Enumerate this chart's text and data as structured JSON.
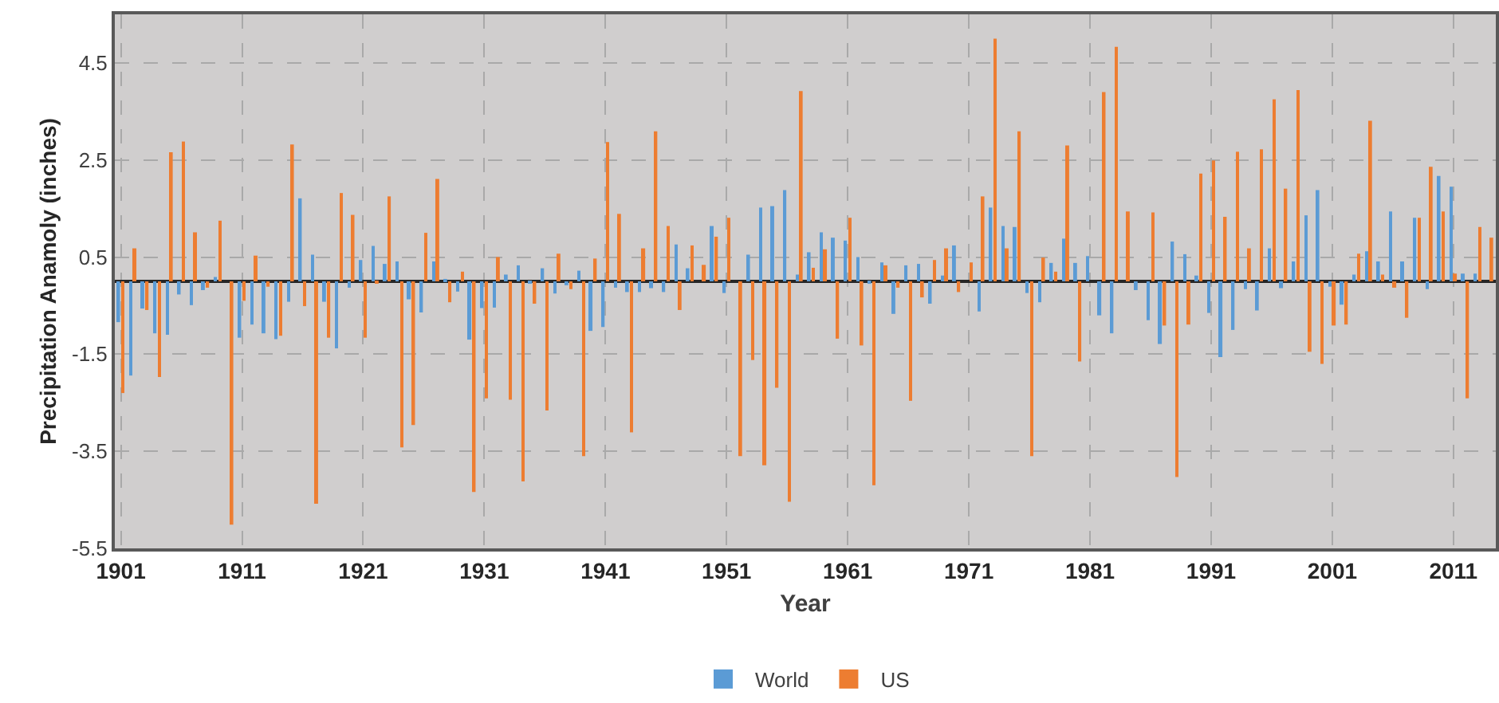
{
  "chart_data": {
    "type": "bar",
    "xlabel": "Year",
    "ylabel": "Precipitation Anamoly (inches)",
    "x": [
      1901,
      1902,
      1903,
      1904,
      1905,
      1906,
      1907,
      1908,
      1909,
      1910,
      1911,
      1912,
      1913,
      1914,
      1915,
      1916,
      1917,
      1918,
      1919,
      1920,
      1921,
      1922,
      1923,
      1924,
      1925,
      1926,
      1927,
      1928,
      1929,
      1930,
      1931,
      1932,
      1933,
      1934,
      1935,
      1936,
      1937,
      1938,
      1939,
      1940,
      1941,
      1942,
      1943,
      1944,
      1945,
      1946,
      1947,
      1948,
      1949,
      1950,
      1951,
      1952,
      1953,
      1954,
      1955,
      1956,
      1957,
      1958,
      1959,
      1960,
      1961,
      1962,
      1963,
      1964,
      1965,
      1966,
      1967,
      1968,
      1969,
      1970,
      1971,
      1972,
      1973,
      1974,
      1975,
      1976,
      1977,
      1978,
      1979,
      1980,
      1981,
      1982,
      1983,
      1984,
      1985,
      1986,
      1987,
      1988,
      1989,
      1990,
      1991,
      1992,
      1993,
      1994,
      1995,
      1996,
      1997,
      1998,
      1999,
      2000,
      2001,
      2002,
      2003,
      2004,
      2005,
      2006,
      2007,
      2008,
      2009,
      2010,
      2011,
      2012,
      2013,
      2014
    ],
    "series": [
      {
        "name": "World",
        "color": "#5b9bd5",
        "values": [
          -0.84,
          -1.94,
          -0.56,
          -1.07,
          -1.1,
          -0.27,
          -0.49,
          -0.18,
          0.09,
          0,
          -1.16,
          -0.89,
          -1.07,
          -1.19,
          -0.42,
          1.71,
          0.55,
          -0.42,
          -1.38,
          -0.13,
          0.44,
          0.73,
          0.36,
          0.41,
          -0.37,
          -0.64,
          0.41,
          0.05,
          -0.21,
          -1.2,
          -0.55,
          -0.54,
          0.14,
          0.33,
          -0.02,
          0.27,
          -0.25,
          -0.08,
          0.22,
          -1.02,
          -0.94,
          -0.13,
          -0.22,
          -0.22,
          -0.14,
          -0.22,
          0.76,
          0.27,
          0,
          1.14,
          -0.24,
          0,
          0.55,
          1.52,
          1.55,
          1.88,
          0.14,
          0.6,
          1.01,
          0.9,
          0.84,
          0.5,
          -0.05,
          0.39,
          -0.67,
          0.33,
          0.36,
          -0.46,
          0.12,
          0.74,
          0,
          -0.62,
          1.52,
          1.14,
          1.12,
          -0.24,
          -0.43,
          0.38,
          0.88,
          0.38,
          0.52,
          -0.7,
          -1.07,
          0,
          -0.18,
          -0.8,
          -1.29,
          0.82,
          0.56,
          0.12,
          -0.65,
          -1.56,
          -1.0,
          -0.16,
          -0.6,
          0.68,
          -0.14,
          0.41,
          1.36,
          1.88,
          -0.11,
          -0.48,
          0.14,
          0.62,
          0.41,
          1.44,
          0.41,
          1.31,
          -0.16,
          2.17,
          1.95,
          0.16,
          0.16,
          null
        ]
      },
      {
        "name": "US",
        "color": "#ed7d31",
        "values": [
          -2.3,
          0.68,
          -0.59,
          -1.97,
          2.66,
          2.88,
          1.01,
          -0.13,
          1.25,
          -5.01,
          -0.4,
          0.53,
          -0.11,
          -1.12,
          2.82,
          -0.51,
          -4.58,
          -1.16,
          1.82,
          1.37,
          -1.16,
          -0.04,
          1.75,
          -3.42,
          -2.96,
          1.0,
          2.11,
          -0.43,
          0.2,
          -4.34,
          -2.41,
          0.5,
          -2.44,
          -4.12,
          -0.46,
          -2.66,
          0.57,
          -0.16,
          -3.6,
          0.47,
          2.87,
          1.39,
          -3.11,
          0.68,
          3.09,
          1.14,
          -0.59,
          0.74,
          0.34,
          0.92,
          1.31,
          -3.6,
          -1.62,
          -3.79,
          -2.19,
          -4.54,
          3.92,
          0.28,
          0.66,
          -1.18,
          1.31,
          -1.32,
          -4.2,
          0.33,
          -0.13,
          -2.46,
          -0.33,
          0.44,
          0.68,
          -0.22,
          0.39,
          1.75,
          5.0,
          0.68,
          3.09,
          -3.6,
          0.49,
          0.2,
          2.8,
          -1.65,
          0,
          3.9,
          4.83,
          1.44,
          0,
          1.42,
          -0.91,
          -4.03,
          -0.89,
          2.22,
          2.49,
          1.33,
          2.67,
          0.68,
          2.72,
          3.75,
          1.91,
          3.94,
          -1.45,
          -1.7,
          -0.91,
          -0.89,
          0.57,
          3.31,
          0.14,
          -0.13,
          -0.75,
          1.31,
          2.36,
          1.44,
          0.16,
          -2.41,
          1.12,
          0.9
        ]
      }
    ],
    "xlim": [
      1900.5,
      2014.5
    ],
    "xticks": [
      1901,
      1911,
      1921,
      1931,
      1941,
      1951,
      1961,
      1971,
      1981,
      1991,
      2001,
      2011
    ],
    "ylim": [
      -5.5,
      5.5
    ],
    "yticks": [
      -5.5,
      -3.5,
      -1.5,
      0.5,
      2.5,
      4.5
    ],
    "grid": true,
    "legend": "bottom"
  }
}
